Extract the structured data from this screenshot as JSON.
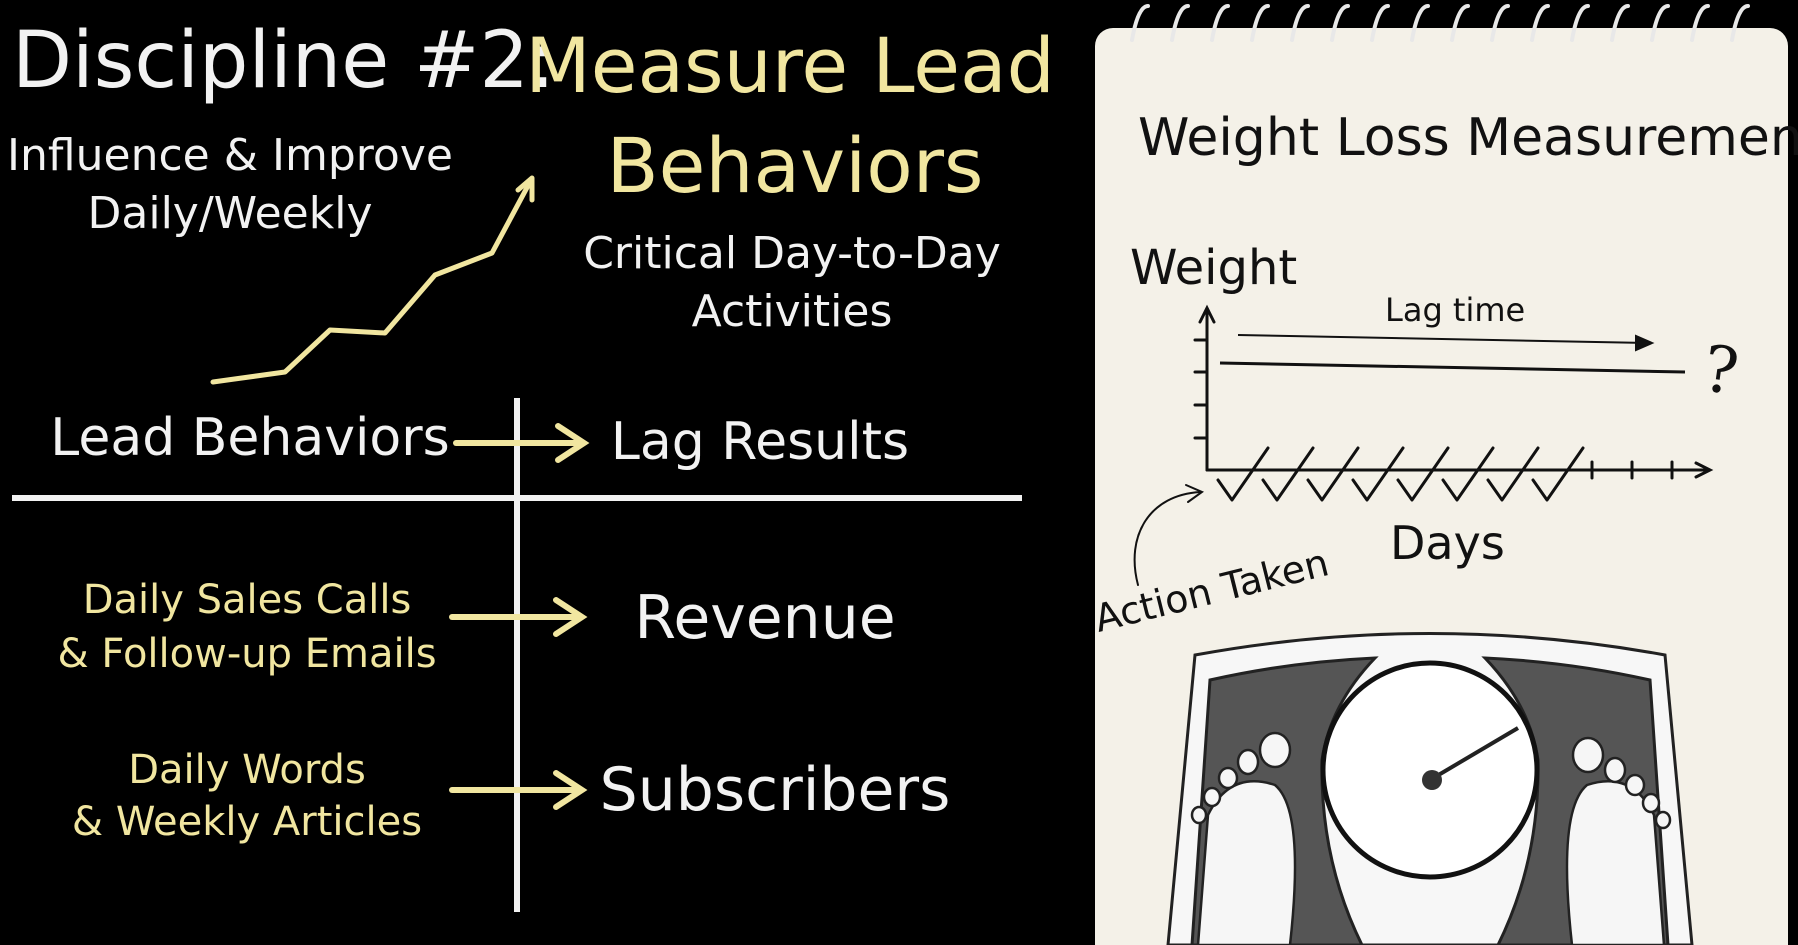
{
  "header": {
    "label": "Discipline #2:",
    "title_line1": "Measure Lead",
    "title_line2": "Behaviors",
    "influence_line1": "Influence & Improve",
    "influence_line2": "Daily/Weekly",
    "critical_line1": "Critical Day-to-Day",
    "critical_line2": "Activities"
  },
  "table": {
    "lead_header": "Lead Behaviors",
    "lag_header": "Lag Results",
    "rows": [
      {
        "lead_line1": "Daily Sales Calls",
        "lead_line2": "& Follow-up Emails",
        "lag": "Revenue"
      },
      {
        "lead_line1": "Daily Words",
        "lead_line2": "& Weekly Articles",
        "lag": "Subscribers"
      }
    ]
  },
  "notebook": {
    "title": "Weight Loss Measurement:",
    "y_label": "Weight",
    "lag_label": "Lag time",
    "x_label": "Days",
    "action_label": "Action Taken",
    "question_mark": "?"
  },
  "colors": {
    "background": "#000000",
    "accent": "#f1e6a0",
    "text": "#f2f2f2",
    "paper": "#f4f1e8",
    "scale_dark": "#555555"
  },
  "icons": [
    "spiral-binding-icon",
    "rising-trend-arrow-icon",
    "bathroom-scale-icon"
  ]
}
